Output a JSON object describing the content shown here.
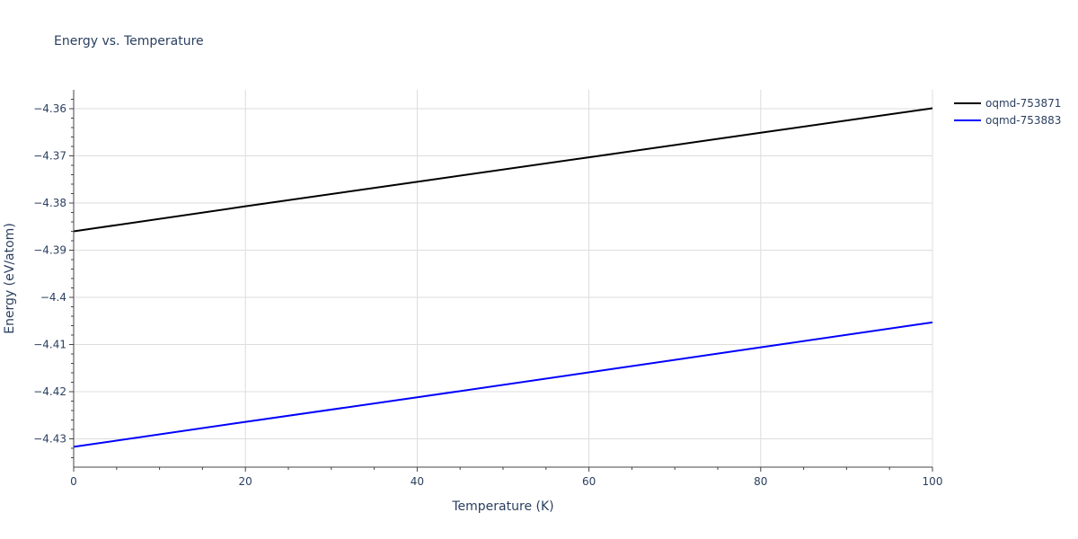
{
  "chart_data": {
    "type": "line",
    "title": "Energy vs. Temperature",
    "xlabel": "Temperature (K)",
    "ylabel": "Energy (eV/atom)",
    "xlim": [
      0,
      100
    ],
    "ylim": [
      -4.436,
      -4.356
    ],
    "x_ticks": [
      0,
      20,
      40,
      60,
      80,
      100
    ],
    "x_tick_labels": [
      "0",
      "20",
      "40",
      "60",
      "80",
      "100"
    ],
    "y_ticks": [
      -4.43,
      -4.42,
      -4.41,
      -4.4,
      -4.39,
      -4.38,
      -4.37,
      -4.36
    ],
    "y_tick_labels": [
      "−4.43",
      "−4.42",
      "−4.41",
      "−4.4",
      "−4.39",
      "−4.38",
      "−4.37",
      "−4.36"
    ],
    "grid": true,
    "legend_position": "top-right",
    "series": [
      {
        "name": "oqmd-753871",
        "color": "#000000",
        "x": [
          0,
          20,
          40,
          60,
          80,
          100
        ],
        "values": [
          -4.386,
          -4.3807,
          -4.3755,
          -4.3703,
          -4.3651,
          -4.3599
        ]
      },
      {
        "name": "oqmd-753883",
        "color": "#0000ff",
        "x": [
          0,
          20,
          40,
          60,
          80,
          100
        ],
        "values": [
          -4.4317,
          -4.4264,
          -4.4212,
          -4.4159,
          -4.4106,
          -4.4053
        ]
      }
    ]
  }
}
